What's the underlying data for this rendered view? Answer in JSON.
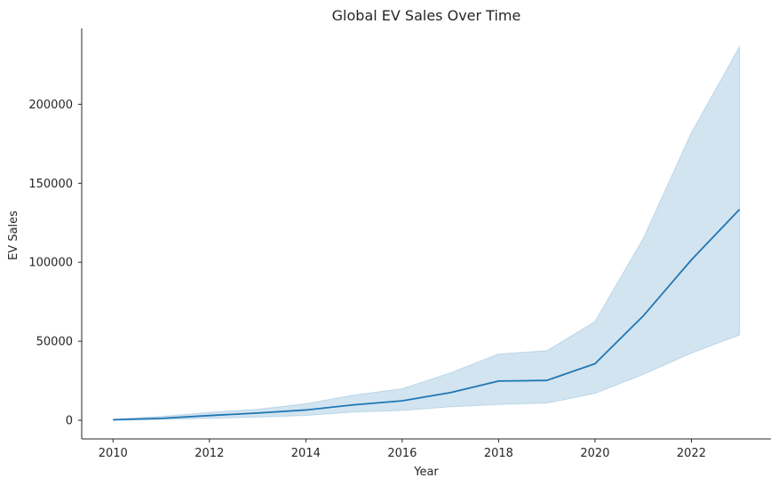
{
  "chart_data": {
    "type": "line",
    "title": "Global EV Sales Over Time",
    "xlabel": "Year",
    "ylabel": "EV Sales",
    "x": [
      2010,
      2011,
      2012,
      2013,
      2014,
      2015,
      2016,
      2017,
      2018,
      2019,
      2020,
      2021,
      2022,
      2023
    ],
    "series": [
      {
        "values": [
          300,
          1200,
          3000,
          4600,
          6500,
          9800,
          12300,
          17500,
          24800,
          25200,
          35800,
          66000,
          101500,
          133500
        ],
        "band_lower": [
          0,
          500,
          1200,
          2000,
          3000,
          5200,
          6200,
          8500,
          10000,
          10800,
          17000,
          29000,
          42500,
          54000
        ],
        "band_upper": [
          700,
          2500,
          5000,
          7000,
          10500,
          16000,
          20000,
          30000,
          42000,
          44000,
          62500,
          115000,
          182000,
          236500
        ],
        "color": "#1f77b4",
        "band_color": "#1f77b4",
        "band_opacity": 0.2
      }
    ],
    "xlim": [
      2009.35,
      2023.65
    ],
    "ylim": [
      -11800,
      248000
    ],
    "x_ticks": [
      2010,
      2012,
      2014,
      2016,
      2018,
      2020,
      2022
    ],
    "x_tick_labels": [
      "2010",
      "2012",
      "2014",
      "2016",
      "2018",
      "2020",
      "2022"
    ],
    "y_ticks": [
      0,
      50000,
      100000,
      150000,
      200000
    ],
    "y_tick_labels": [
      "0",
      "50000",
      "100000",
      "150000",
      "200000"
    ],
    "grid": false,
    "legend": "none",
    "spines": "left-bottom"
  }
}
